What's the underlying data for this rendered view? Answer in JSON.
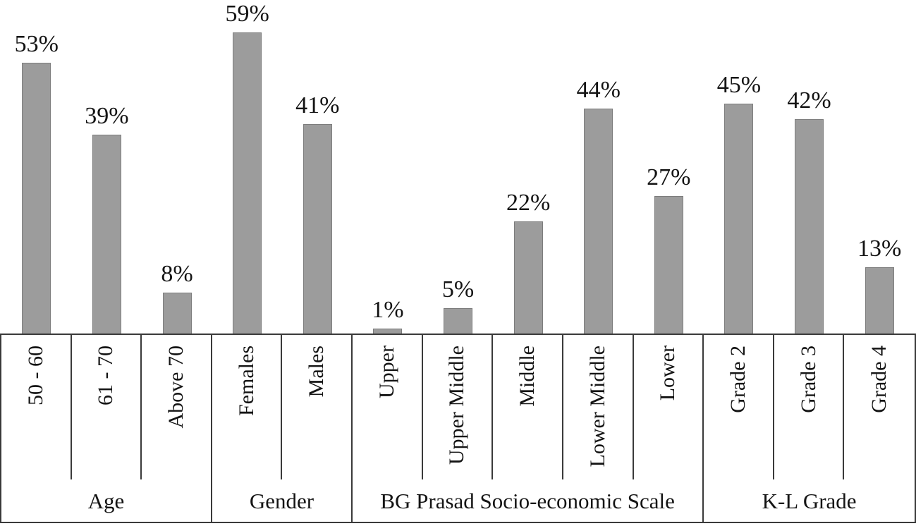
{
  "chart_data": {
    "type": "bar",
    "title": "",
    "xlabel": "",
    "ylabel": "",
    "value_suffix": "%",
    "ylim": [
      0,
      65
    ],
    "grid": false,
    "legend": false,
    "bar_color": "#9c9c9c",
    "bar_border_color": "#7d7d7d",
    "axis_color": "#3a3a3a",
    "groups": [
      {
        "label": "Age",
        "categories": [
          "50 - 60",
          "61 - 70",
          "Above 70"
        ],
        "values": [
          53,
          39,
          8
        ]
      },
      {
        "label": "Gender",
        "categories": [
          "Females",
          "Males"
        ],
        "values": [
          59,
          41
        ]
      },
      {
        "label": "BG Prasad Socio-economic Scale",
        "categories": [
          "Upper",
          "Upper Middle",
          "Middle",
          "Lower Middle",
          "Lower"
        ],
        "values": [
          1,
          5,
          22,
          44,
          27
        ]
      },
      {
        "label": "K-L Grade",
        "categories": [
          "Grade 2",
          "Grade 3",
          "Grade 4"
        ],
        "values": [
          45,
          42,
          13
        ]
      }
    ]
  }
}
